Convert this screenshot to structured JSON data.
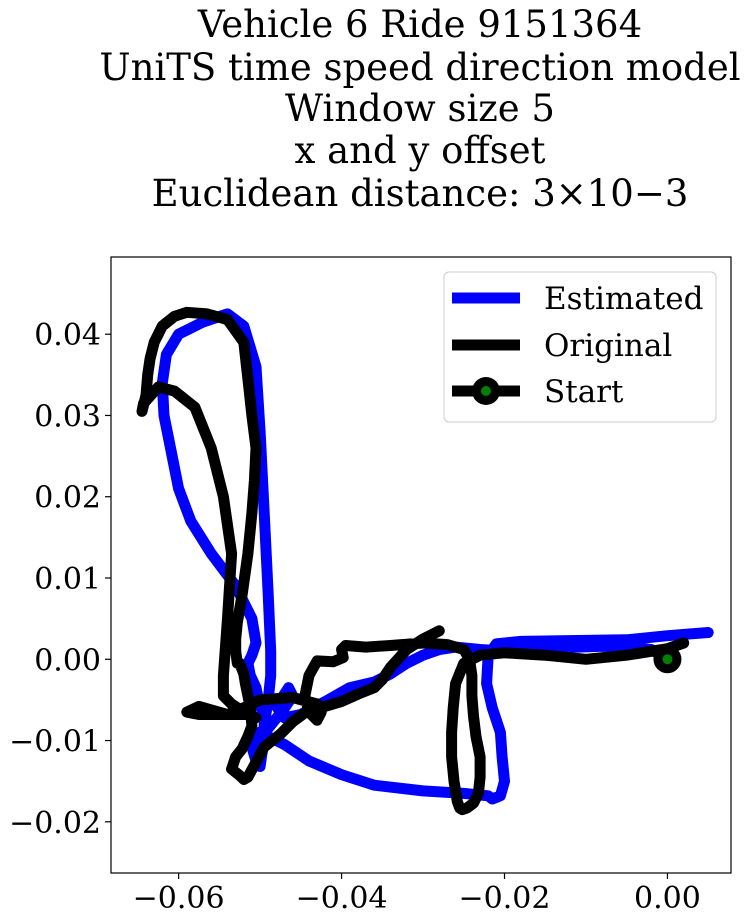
{
  "chart_data": {
    "type": "line",
    "title": [
      "Vehicle 6 Ride 9151364",
      "UniTS time speed direction model",
      "Window size 5",
      "x and y offset",
      "Euclidean distance: 3×10−3"
    ],
    "xlabel": "",
    "ylabel": "",
    "xlim": [
      -0.0683,
      0.0078
    ],
    "ylim": [
      -0.0263,
      0.0495
    ],
    "xticks": [
      -0.06,
      -0.04,
      -0.02,
      0.0
    ],
    "xtick_labels": [
      "−0.06",
      "−0.04",
      "−0.02",
      "0.00"
    ],
    "yticks": [
      -0.02,
      -0.01,
      0.0,
      0.01,
      0.02,
      0.03,
      0.04
    ],
    "ytick_labels": [
      "−0.02",
      "−0.01",
      "0.00",
      "0.01",
      "0.02",
      "0.03",
      "0.04"
    ],
    "grid": false,
    "legend_position": "top-right",
    "series": [
      {
        "name": "Estimated",
        "color": "#0000ff",
        "x": [
          0.005,
          0.0,
          -0.005,
          -0.012,
          -0.018,
          -0.021,
          -0.022,
          -0.0222,
          -0.0215,
          -0.0205,
          -0.0203,
          -0.02,
          -0.0205,
          -0.0215,
          -0.022,
          -0.025,
          -0.03,
          -0.036,
          -0.04,
          -0.044,
          -0.047,
          -0.049,
          -0.0505,
          -0.051,
          -0.0505,
          -0.05,
          -0.0498,
          -0.0495,
          -0.0495,
          -0.049,
          -0.0487,
          -0.0487,
          -0.049,
          -0.0495,
          -0.05,
          -0.0505,
          -0.052,
          -0.054,
          -0.057,
          -0.06,
          -0.0615,
          -0.062,
          -0.0618,
          -0.061,
          -0.06,
          -0.0585,
          -0.056,
          -0.053,
          -0.051,
          -0.0505,
          -0.051,
          -0.0515,
          -0.0512,
          -0.0505,
          -0.0502,
          -0.0495,
          -0.0492,
          -0.0495,
          -0.0505,
          -0.049,
          -0.0478,
          -0.047,
          -0.046,
          -0.0465,
          -0.048,
          -0.047,
          -0.045,
          -0.042,
          -0.039,
          -0.036,
          -0.034,
          -0.032,
          -0.03,
          -0.028,
          -0.026,
          -0.023,
          -0.02,
          -0.017,
          -0.014,
          -0.011,
          -0.008,
          -0.005,
          -0.002,
          0.0
        ],
        "y": [
          0.0033,
          0.0029,
          0.0024,
          0.0023,
          0.0022,
          0.0019,
          0.0005,
          -0.003,
          -0.006,
          -0.009,
          -0.012,
          -0.015,
          -0.0168,
          -0.0172,
          -0.0168,
          -0.0165,
          -0.0162,
          -0.0155,
          -0.0142,
          -0.0125,
          -0.0105,
          -0.0095,
          -0.0092,
          -0.0108,
          -0.0125,
          -0.0132,
          -0.0118,
          -0.01,
          -0.008,
          -0.005,
          -0.002,
          0.001,
          0.008,
          0.018,
          0.028,
          0.036,
          0.041,
          0.0425,
          0.0415,
          0.04,
          0.0375,
          0.034,
          0.03,
          0.026,
          0.021,
          0.017,
          0.013,
          0.009,
          0.005,
          0.002,
          0.0005,
          -0.0005,
          -0.002,
          -0.0035,
          -0.005,
          -0.0072,
          -0.0085,
          -0.009,
          -0.0092,
          -0.0085,
          -0.007,
          -0.006,
          -0.0045,
          -0.0035,
          -0.0058,
          -0.0072,
          -0.0068,
          -0.0052,
          -0.0035,
          -0.0028,
          -0.0018,
          -0.0005,
          0.0005,
          0.0012,
          0.0015,
          0.0012,
          0.001,
          0.0012,
          0.0015,
          0.0015,
          0.0016,
          0.0015,
          0.0012,
          0.0
        ]
      },
      {
        "name": "Original",
        "color": "#000000",
        "x": [
          0.002,
          0.0,
          -0.005,
          -0.01,
          -0.015,
          -0.02,
          -0.023,
          -0.025,
          -0.026,
          -0.0263,
          -0.0265,
          -0.0265,
          -0.0262,
          -0.0258,
          -0.0255,
          -0.0252,
          -0.0246,
          -0.0238,
          -0.0232,
          -0.023,
          -0.023,
          -0.0235,
          -0.0238,
          -0.024,
          -0.024,
          -0.0243,
          -0.025,
          -0.027,
          -0.03,
          -0.034,
          -0.037,
          -0.0395,
          -0.04,
          -0.0398,
          -0.041,
          -0.043,
          -0.044,
          -0.0445,
          -0.044,
          -0.043,
          -0.0425,
          -0.043,
          -0.046,
          -0.05,
          -0.0525,
          -0.054,
          -0.0575,
          -0.059,
          -0.0575,
          -0.054,
          -0.0515,
          -0.0505,
          -0.052,
          -0.0535,
          -0.0545,
          -0.0545,
          -0.054,
          -0.0535,
          -0.0545,
          -0.056,
          -0.058,
          -0.0605,
          -0.0625,
          -0.0643,
          -0.0645,
          -0.064,
          -0.0638,
          -0.0635,
          -0.063,
          -0.062,
          -0.0605,
          -0.059,
          -0.0565,
          -0.054,
          -0.052,
          -0.0515,
          -0.051,
          -0.0505,
          -0.0507,
          -0.051,
          -0.0515,
          -0.0522,
          -0.0528,
          -0.053,
          -0.053,
          -0.0528,
          -0.0525,
          -0.052,
          -0.0518,
          -0.0515,
          -0.0512,
          -0.051,
          -0.0515,
          -0.0522,
          -0.053,
          -0.0535,
          -0.0525,
          -0.052,
          -0.0515,
          -0.0495,
          -0.0475,
          -0.046,
          -0.044,
          -0.042,
          -0.04,
          -0.038,
          -0.036,
          -0.035,
          -0.034,
          -0.032,
          -0.03,
          -0.028
        ],
        "y": [
          0.002,
          0.0013,
          0.0005,
          0.0,
          0.0005,
          0.0008,
          0.0005,
          -0.0005,
          -0.003,
          -0.006,
          -0.009,
          -0.012,
          -0.015,
          -0.0175,
          -0.0183,
          -0.0185,
          -0.0183,
          -0.0177,
          -0.0165,
          -0.0145,
          -0.012,
          -0.0095,
          -0.007,
          -0.0045,
          -0.002,
          0.0,
          0.0012,
          0.0018,
          0.002,
          0.0017,
          0.0015,
          0.0017,
          0.0012,
          0.0002,
          -0.0003,
          -0.0002,
          -0.002,
          -0.0045,
          -0.0065,
          -0.0075,
          -0.0065,
          -0.0055,
          -0.0047,
          -0.005,
          -0.0062,
          -0.0068,
          -0.0058,
          -0.0065,
          -0.0068,
          -0.0068,
          -0.0068,
          -0.0072,
          -0.0065,
          -0.0055,
          -0.0045,
          -0.002,
          0.005,
          0.013,
          0.02,
          0.026,
          0.031,
          0.033,
          0.0335,
          0.0315,
          0.0305,
          0.0325,
          0.035,
          0.037,
          0.039,
          0.041,
          0.0422,
          0.0427,
          0.0425,
          0.0418,
          0.039,
          0.0345,
          0.03,
          0.026,
          0.022,
          0.018,
          0.013,
          0.008,
          0.0045,
          0.0025,
          0.001,
          -0.0005,
          -0.0005,
          -0.0018,
          -0.003,
          -0.0045,
          -0.006,
          -0.0082,
          -0.0095,
          -0.011,
          -0.012,
          -0.0135,
          -0.0143,
          -0.0148,
          -0.0145,
          -0.0108,
          -0.0092,
          -0.0077,
          -0.0062,
          -0.0058,
          -0.0052,
          -0.0043,
          -0.0035,
          -0.0025,
          -0.001,
          0.0012,
          0.0025,
          0.0035
        ]
      }
    ],
    "start_marker": {
      "name": "Start",
      "x": 0.0,
      "y": 0.0,
      "outer_color": "#000000",
      "inner_color": "#008000"
    },
    "legend": [
      "Estimated",
      "Original",
      "Start"
    ]
  }
}
